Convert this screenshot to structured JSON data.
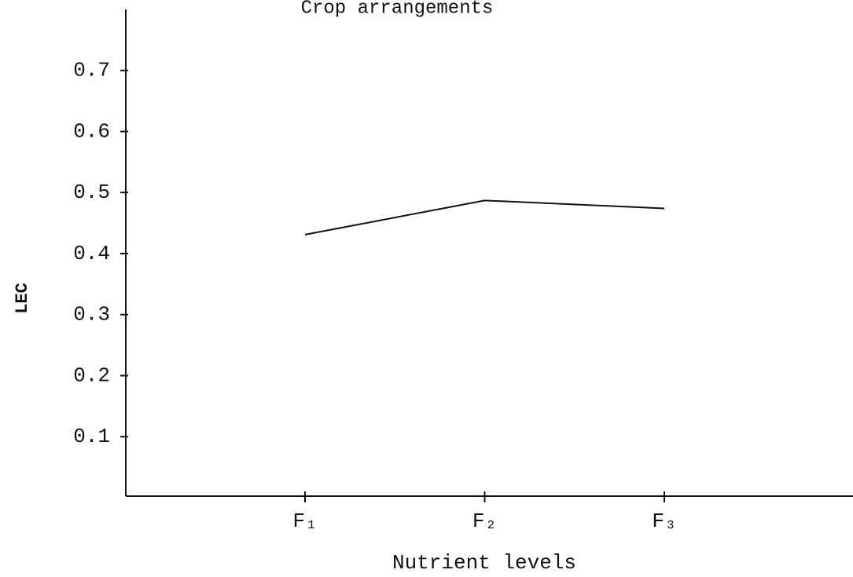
{
  "chart_data": {
    "type": "line",
    "title": "Crop arrangements",
    "x_label": "Nutrient levels",
    "y_label": "LEC",
    "categories": [
      "F₁",
      "F₂",
      "F₃"
    ],
    "values": [
      0.431,
      0.487,
      0.474
    ],
    "color": "#111111",
    "ylim": [
      0,
      0.8
    ],
    "yticks": [
      0.1,
      0.2,
      0.3,
      0.4,
      0.5,
      0.6,
      0.7
    ],
    "grid": false
  }
}
